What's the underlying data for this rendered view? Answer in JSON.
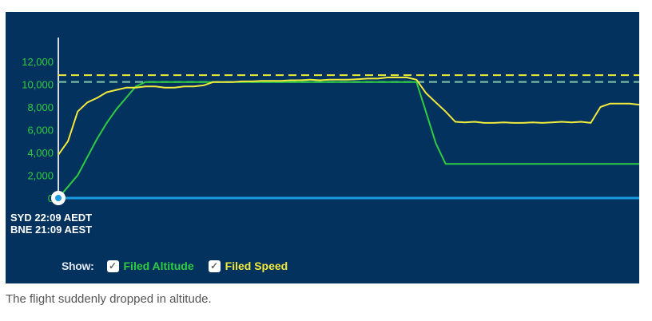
{
  "chart_data": {
    "type": "line",
    "title": "",
    "xlabel": "",
    "ylabel": "",
    "ylim": [
      0,
      12000
    ],
    "yticks": [
      "0",
      "2,000",
      "4,000",
      "6,000",
      "8,000",
      "10,000",
      "12,000"
    ],
    "ytick_values": [
      0,
      2000,
      4000,
      6000,
      8000,
      10000,
      12000
    ],
    "grid": false,
    "series": [
      {
        "name": "Filed Altitude",
        "color": "#2ecc40",
        "values": [
          0,
          1000,
          2000,
          3600,
          5200,
          6600,
          7800,
          8800,
          9800,
          10200,
          10200,
          10200,
          10200,
          10200,
          10200,
          10200,
          10200,
          10200,
          10200,
          10200,
          10200,
          10200,
          10200,
          10200,
          10200,
          10200,
          10200,
          10200,
          10200,
          10200,
          10200,
          10200,
          10200,
          10200,
          10200,
          10200,
          10200,
          10200,
          7500,
          4800,
          3000,
          3000,
          3000,
          3000,
          3000,
          3000,
          3000,
          3000,
          3000,
          3000,
          3000,
          3000,
          3000,
          3000,
          3000,
          3000,
          3000,
          3000,
          3000,
          3000,
          3000
        ]
      },
      {
        "name": "Filed Speed",
        "color": "#f2ea3a",
        "values": [
          3800,
          5000,
          7600,
          8400,
          8800,
          9300,
          9500,
          9700,
          9700,
          9800,
          9800,
          9700,
          9700,
          9800,
          9800,
          9900,
          10200,
          10200,
          10200,
          10250,
          10250,
          10300,
          10300,
          10300,
          10350,
          10350,
          10400,
          10350,
          10400,
          10400,
          10400,
          10450,
          10500,
          10500,
          10600,
          10600,
          10600,
          10400,
          9200,
          8400,
          7600,
          6700,
          6650,
          6700,
          6600,
          6600,
          6650,
          6600,
          6600,
          6650,
          6600,
          6650,
          6700,
          6650,
          6700,
          6600,
          8000,
          8300,
          8300,
          8300,
          8200
        ]
      }
    ],
    "reference_lines": [
      {
        "value": 10800,
        "color": "#f2ea3a",
        "style": "dashed"
      },
      {
        "value": 10200,
        "color": "#7fc9b0",
        "style": "dashed"
      }
    ],
    "baseline_color": "#1a9be0"
  },
  "times": {
    "syd": "SYD 22:09 AEDT",
    "bne": "BNE 21:09 AEST"
  },
  "legend": {
    "show_label": "Show:",
    "items": [
      {
        "label": "Filed Altitude",
        "checked": true,
        "color": "#2ecc40"
      },
      {
        "label": "Filed Speed",
        "checked": true,
        "color": "#f2ea3a"
      }
    ],
    "check_glyph": "✓"
  },
  "caption": "The flight suddenly dropped in altitude."
}
